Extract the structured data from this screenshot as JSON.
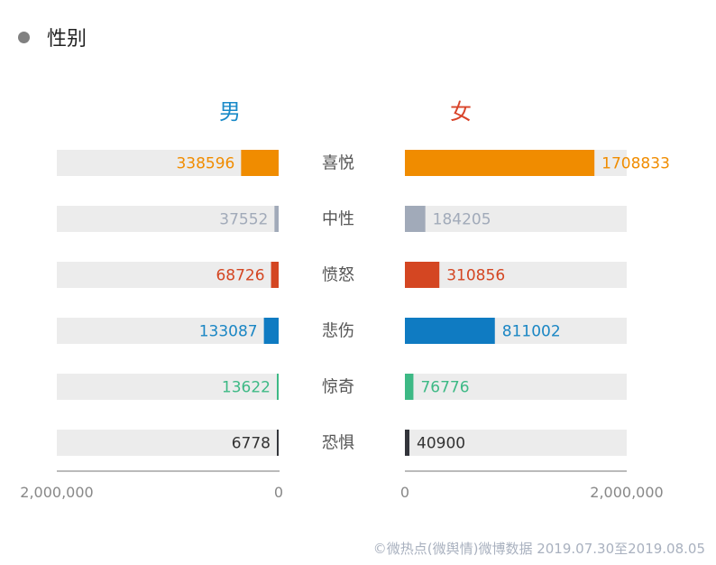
{
  "section": {
    "title": "性别"
  },
  "chart_data": {
    "type": "bar",
    "categories": [
      "喜悦",
      "中性",
      "愤怒",
      "悲伤",
      "惊奇",
      "恐惧"
    ],
    "series": [
      {
        "name": "男",
        "values": [
          338596,
          37552,
          68726,
          133087,
          13622,
          6778
        ],
        "color": "#1a8ac8"
      },
      {
        "name": "女",
        "values": [
          1708833,
          184205,
          310856,
          811002,
          76776,
          40900
        ],
        "color": "#d9442a"
      }
    ],
    "category_colors": [
      "#f08c00",
      "#a1aab9",
      "#d44622",
      "#0f7bc2",
      "#3db985",
      "#33353b"
    ],
    "value_label_colors": [
      "#f08c00",
      "#a1aab9",
      "#d44622",
      "#1a86c4",
      "#3db985",
      "#333333"
    ],
    "xlim": [
      0,
      2000000
    ],
    "tick_labels": [
      "2,000,000",
      "0",
      "0",
      "2,000,000"
    ]
  },
  "footer": "©微热点(微舆情)微博数据 2019.07.30至2019.08.05"
}
